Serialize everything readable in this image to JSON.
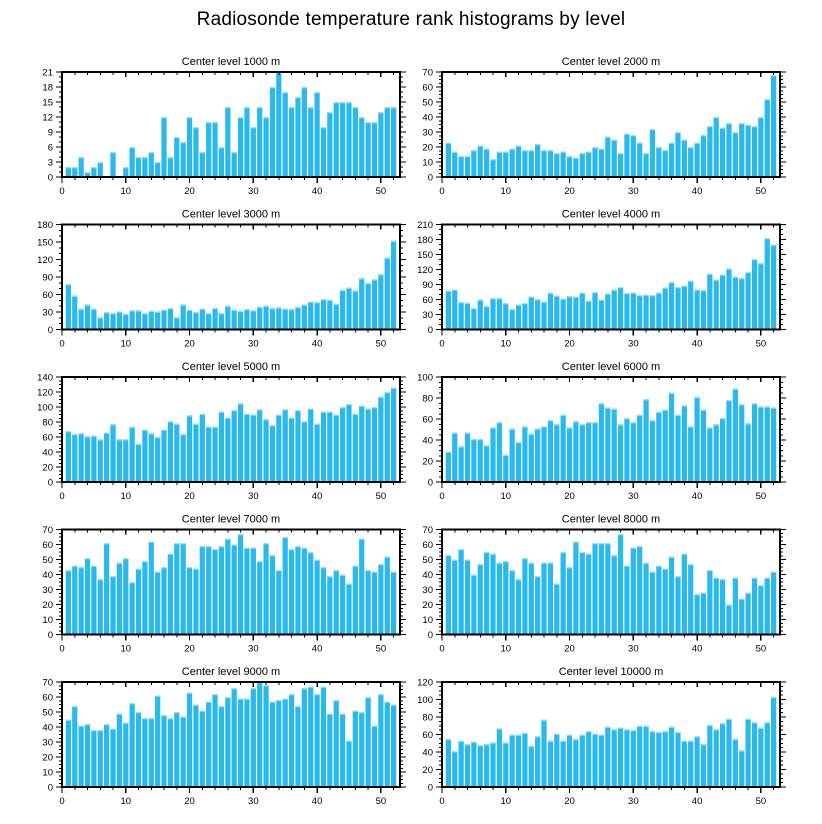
{
  "page_title": "Radiosonde temperature rank histograms by level",
  "colors": {
    "bar": "#29B9EC",
    "bar_highlight": "#9ADEF6",
    "axis": "#000000",
    "text": "#000000",
    "background": "#FFFFFF"
  },
  "chart_data": [
    {
      "type": "bar",
      "title": "Center level 1000 m",
      "xlabel": "",
      "ylabel": "",
      "grid": false,
      "legend": false,
      "xlim": [
        0,
        53
      ],
      "xticks": [
        0,
        10,
        20,
        30,
        40,
        50
      ],
      "x_minor_step": 2,
      "ylim": [
        0,
        21
      ],
      "yticks": [
        0,
        3,
        6,
        9,
        12,
        15,
        18,
        21
      ],
      "y_minor_step": 1,
      "x_start": 1,
      "values": [
        2,
        2,
        4,
        1,
        2,
        3,
        0,
        5,
        0,
        2,
        6,
        4,
        4,
        5,
        3,
        12,
        4,
        8,
        7,
        12,
        10,
        5,
        11,
        11,
        6,
        14,
        5,
        12,
        14,
        10,
        14,
        12,
        18,
        21,
        17,
        14,
        16,
        18,
        14,
        17,
        10,
        13,
        15,
        15,
        15,
        14,
        12,
        11,
        11,
        13,
        14,
        14
      ]
    },
    {
      "type": "bar",
      "title": "Center level 2000 m",
      "xlabel": "",
      "ylabel": "",
      "grid": false,
      "legend": false,
      "xlim": [
        0,
        53
      ],
      "xticks": [
        0,
        10,
        20,
        30,
        40,
        50
      ],
      "x_minor_step": 2,
      "ylim": [
        0,
        70
      ],
      "yticks": [
        0,
        10,
        20,
        30,
        40,
        50,
        60,
        70
      ],
      "y_minor_step": 2.5,
      "x_start": 1,
      "values": [
        23,
        17,
        14,
        14,
        18,
        21,
        19,
        12,
        17,
        17,
        19,
        21,
        18,
        18,
        22,
        18,
        18,
        16,
        17,
        14,
        13,
        16,
        17,
        20,
        19,
        27,
        25,
        16,
        29,
        28,
        23,
        16,
        32,
        20,
        18,
        23,
        30,
        25,
        20,
        23,
        28,
        34,
        40,
        33,
        36,
        30,
        36,
        35,
        34,
        40,
        52,
        68
      ]
    },
    {
      "type": "bar",
      "title": "Center level 3000 m",
      "xlabel": "",
      "ylabel": "",
      "grid": false,
      "legend": false,
      "xlim": [
        0,
        53
      ],
      "xticks": [
        0,
        10,
        20,
        30,
        40,
        50
      ],
      "x_minor_step": 2,
      "ylim": [
        0,
        180
      ],
      "yticks": [
        0,
        30,
        60,
        90,
        120,
        150,
        180
      ],
      "y_minor_step": 10,
      "x_start": 1,
      "values": [
        78,
        58,
        36,
        43,
        36,
        21,
        30,
        28,
        31,
        27,
        33,
        33,
        28,
        32,
        31,
        34,
        37,
        21,
        43,
        34,
        30,
        36,
        28,
        37,
        28,
        41,
        34,
        32,
        35,
        33,
        39,
        41,
        37,
        38,
        36,
        35,
        39,
        43,
        48,
        47,
        52,
        51,
        44,
        68,
        72,
        67,
        88,
        80,
        86,
        95,
        123,
        152
      ]
    },
    {
      "type": "bar",
      "title": "Center level 4000 m",
      "xlabel": "",
      "ylabel": "",
      "grid": false,
      "legend": false,
      "xlim": [
        0,
        53
      ],
      "xticks": [
        0,
        10,
        20,
        30,
        40,
        50
      ],
      "x_minor_step": 2,
      "ylim": [
        0,
        210
      ],
      "yticks": [
        0,
        30,
        60,
        90,
        120,
        150,
        180,
        210
      ],
      "y_minor_step": 10,
      "x_start": 1,
      "values": [
        78,
        80,
        55,
        54,
        43,
        60,
        47,
        63,
        63,
        53,
        41,
        50,
        53,
        66,
        61,
        56,
        74,
        68,
        62,
        67,
        66,
        74,
        58,
        75,
        60,
        72,
        80,
        85,
        73,
        74,
        69,
        70,
        69,
        74,
        84,
        95,
        85,
        88,
        98,
        80,
        79,
        112,
        100,
        110,
        122,
        106,
        103,
        115,
        141,
        133,
        183,
        170
      ]
    },
    {
      "type": "bar",
      "title": "Center level 5000 m",
      "xlabel": "",
      "ylabel": "",
      "grid": false,
      "legend": false,
      "xlim": [
        0,
        53
      ],
      "xticks": [
        0,
        10,
        20,
        30,
        40,
        50
      ],
      "x_minor_step": 2,
      "ylim": [
        0,
        140
      ],
      "yticks": [
        0,
        20,
        40,
        60,
        80,
        100,
        120,
        140
      ],
      "y_minor_step": 5,
      "x_start": 1,
      "values": [
        68,
        64,
        65,
        61,
        62,
        57,
        66,
        77,
        57,
        57,
        74,
        51,
        70,
        65,
        60,
        70,
        81,
        78,
        64,
        89,
        78,
        91,
        74,
        74,
        94,
        86,
        96,
        105,
        91,
        90,
        97,
        84,
        76,
        90,
        97,
        86,
        96,
        81,
        98,
        78,
        94,
        94,
        90,
        100,
        104,
        91,
        102,
        98,
        100,
        114,
        120,
        126
      ]
    },
    {
      "type": "bar",
      "title": "Center level 6000 m",
      "xlabel": "",
      "ylabel": "",
      "grid": false,
      "legend": false,
      "xlim": [
        0,
        53
      ],
      "xticks": [
        0,
        10,
        20,
        30,
        40,
        50
      ],
      "x_minor_step": 2,
      "ylim": [
        0,
        100
      ],
      "yticks": [
        0,
        20,
        40,
        60,
        80,
        100
      ],
      "y_minor_step": 5,
      "x_start": 1,
      "values": [
        29,
        47,
        34,
        47,
        41,
        41,
        35,
        52,
        57,
        26,
        51,
        38,
        53,
        46,
        51,
        53,
        59,
        55,
        64,
        52,
        58,
        55,
        57,
        57,
        75,
        71,
        70,
        55,
        61,
        57,
        64,
        79,
        59,
        67,
        69,
        85,
        64,
        73,
        53,
        81,
        69,
        52,
        55,
        61,
        78,
        89,
        74,
        56,
        75,
        72,
        72,
        71
      ]
    },
    {
      "type": "bar",
      "title": "Center level 7000 m",
      "xlabel": "",
      "ylabel": "",
      "grid": false,
      "legend": false,
      "xlim": [
        0,
        53
      ],
      "xticks": [
        0,
        10,
        20,
        30,
        40,
        50
      ],
      "x_minor_step": 2,
      "ylim": [
        0,
        70
      ],
      "yticks": [
        0,
        10,
        20,
        30,
        40,
        50,
        60,
        70
      ],
      "y_minor_step": 2.5,
      "x_start": 1,
      "values": [
        43,
        46,
        45,
        51,
        46,
        37,
        61,
        39,
        48,
        51,
        35,
        44,
        49,
        62,
        42,
        45,
        54,
        61,
        61,
        45,
        44,
        59,
        59,
        57,
        59,
        64,
        60,
        67,
        58,
        58,
        49,
        61,
        53,
        43,
        65,
        57,
        59,
        58,
        55,
        50,
        45,
        39,
        43,
        40,
        34,
        46,
        64,
        43,
        42,
        47,
        52,
        42
      ]
    },
    {
      "type": "bar",
      "title": "Center level 8000 m",
      "xlabel": "",
      "ylabel": "",
      "grid": false,
      "legend": false,
      "xlim": [
        0,
        53
      ],
      "xticks": [
        0,
        10,
        20,
        30,
        40,
        50
      ],
      "x_minor_step": 2,
      "ylim": [
        0,
        70
      ],
      "yticks": [
        0,
        10,
        20,
        30,
        40,
        50,
        60,
        70
      ],
      "y_minor_step": 2.5,
      "x_start": 1,
      "values": [
        53,
        50,
        57,
        50,
        40,
        47,
        55,
        54,
        48,
        49,
        43,
        37,
        51,
        48,
        39,
        48,
        48,
        34,
        55,
        45,
        62,
        55,
        54,
        61,
        61,
        61,
        53,
        67,
        46,
        58,
        59,
        48,
        42,
        46,
        44,
        52,
        39,
        54,
        47,
        27,
        28,
        43,
        38,
        37,
        20,
        38,
        24,
        28,
        38,
        33,
        38,
        42
      ]
    },
    {
      "type": "bar",
      "title": "Center level 9000 m",
      "xlabel": "",
      "ylabel": "",
      "grid": false,
      "legend": false,
      "xlim": [
        0,
        53
      ],
      "xticks": [
        0,
        10,
        20,
        30,
        40,
        50
      ],
      "x_minor_step": 2,
      "ylim": [
        0,
        70
      ],
      "yticks": [
        0,
        10,
        20,
        30,
        40,
        50,
        60,
        70
      ],
      "y_minor_step": 2.5,
      "x_start": 1,
      "values": [
        45,
        54,
        41,
        42,
        38,
        38,
        42,
        39,
        49,
        43,
        56,
        50,
        46,
        46,
        61,
        48,
        46,
        50,
        47,
        63,
        55,
        51,
        57,
        62,
        54,
        60,
        66,
        59,
        59,
        66,
        70,
        68,
        57,
        58,
        59,
        62,
        54,
        66,
        67,
        62,
        67,
        49,
        58,
        49,
        31,
        51,
        50,
        60,
        41,
        62,
        57,
        55
      ]
    },
    {
      "type": "bar",
      "title": "Center level 10000 m",
      "xlabel": "",
      "ylabel": "",
      "grid": false,
      "legend": false,
      "xlim": [
        0,
        53
      ],
      "xticks": [
        0,
        10,
        20,
        30,
        40,
        50
      ],
      "x_minor_step": 2,
      "ylim": [
        0,
        120
      ],
      "yticks": [
        0,
        20,
        40,
        60,
        80,
        100,
        120
      ],
      "y_minor_step": 5,
      "x_start": 1,
      "values": [
        55,
        41,
        53,
        49,
        52,
        48,
        49,
        51,
        67,
        51,
        60,
        60,
        62,
        47,
        58,
        77,
        53,
        61,
        53,
        60,
        55,
        60,
        64,
        61,
        60,
        69,
        66,
        68,
        66,
        65,
        70,
        70,
        64,
        63,
        64,
        69,
        63,
        53,
        53,
        58,
        49,
        71,
        66,
        73,
        78,
        55,
        42,
        78,
        74,
        68,
        74,
        103
      ]
    }
  ]
}
